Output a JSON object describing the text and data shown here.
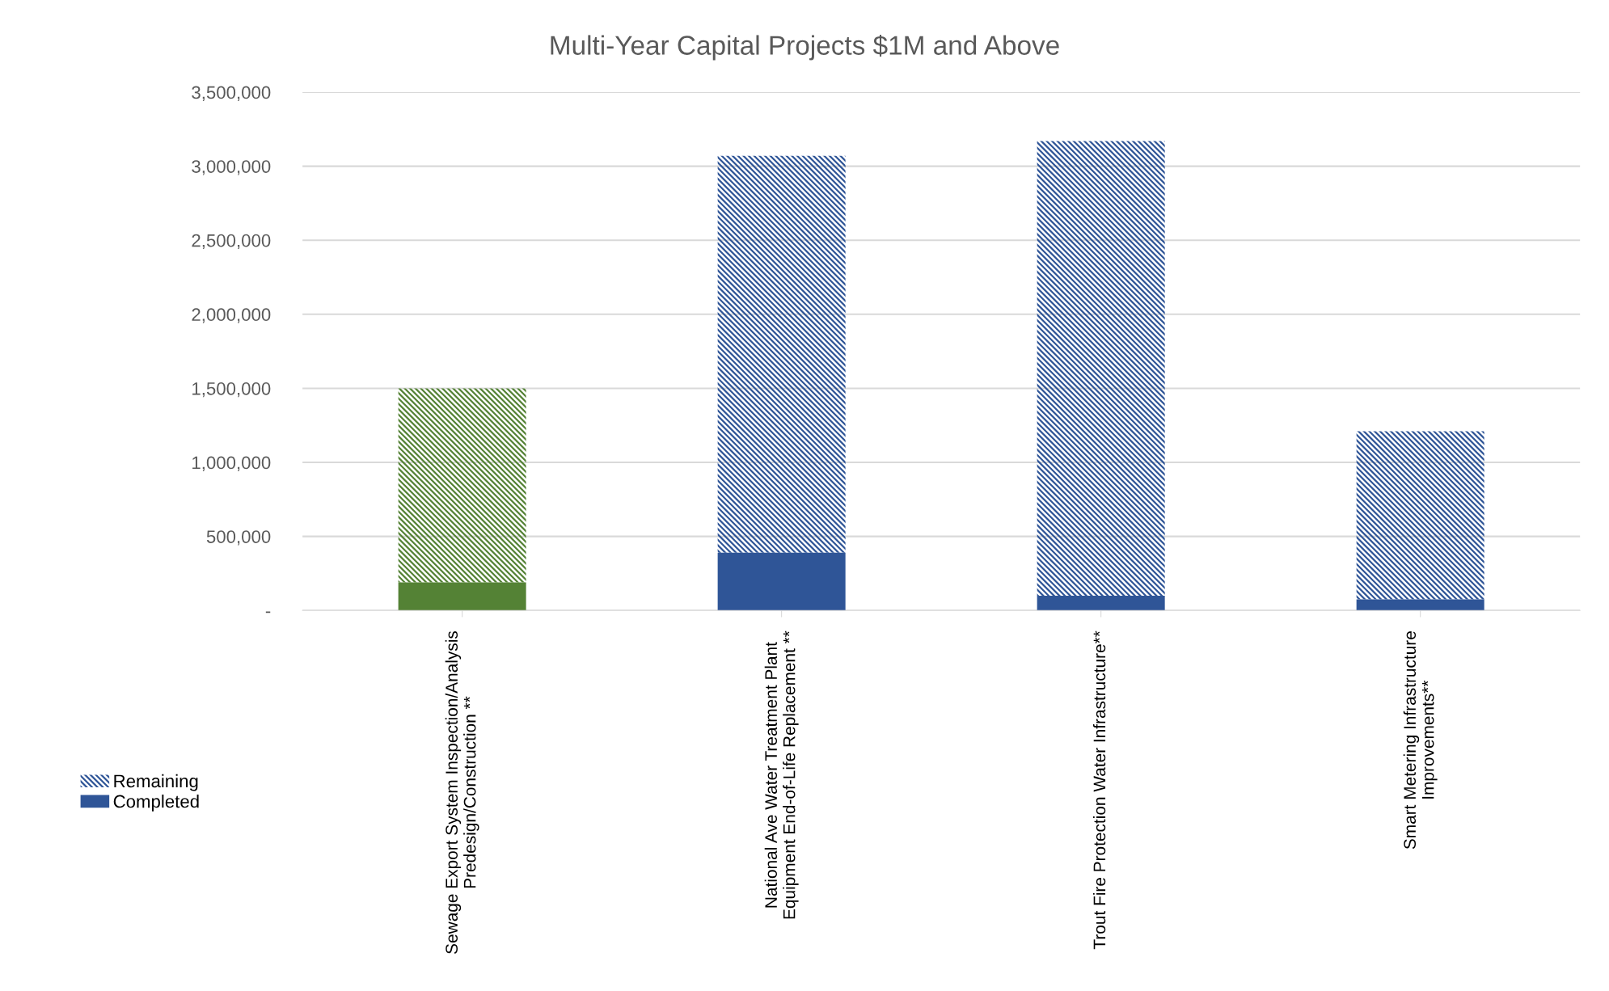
{
  "chart_data": {
    "type": "bar",
    "title": "Multi-Year Capital Projects $1M and Above",
    "categories": [
      "Sewage Export System Inspection/Analysis\nPredesign/Construction **",
      "National Ave Water Treatment Plant\nEquipment End-of-Life Replacement **",
      "Trout Fire Protection Water Infrastructure**",
      "Smart Metering Infrastructure\nImprovements**"
    ],
    "stacked": true,
    "series": [
      {
        "name": "Completed",
        "colors": [
          "#548235",
          "#2f5597",
          "#2f5597",
          "#2f5597"
        ],
        "values": [
          190000,
          390000,
          100000,
          75000
        ]
      },
      {
        "name": "Remaining",
        "colors": [
          "#548235",
          "#2f5597",
          "#2f5597",
          "#2f5597"
        ],
        "values": [
          1310000,
          2680000,
          3070000,
          1135000
        ]
      }
    ],
    "ylim": [
      0,
      3500000
    ],
    "yticks": [
      {
        "value": 0,
        "label": "-"
      },
      {
        "value": 500000,
        "label": "500,000"
      },
      {
        "value": 1000000,
        "label": "1,000,000"
      },
      {
        "value": 1500000,
        "label": "1,500,000"
      },
      {
        "value": 2000000,
        "label": "2,000,000"
      },
      {
        "value": 2500000,
        "label": "2,500,000"
      },
      {
        "value": 3000000,
        "label": "3,000,000"
      },
      {
        "value": 3500000,
        "label": "3,500,000"
      }
    ],
    "grid": "y",
    "legend": "left"
  }
}
